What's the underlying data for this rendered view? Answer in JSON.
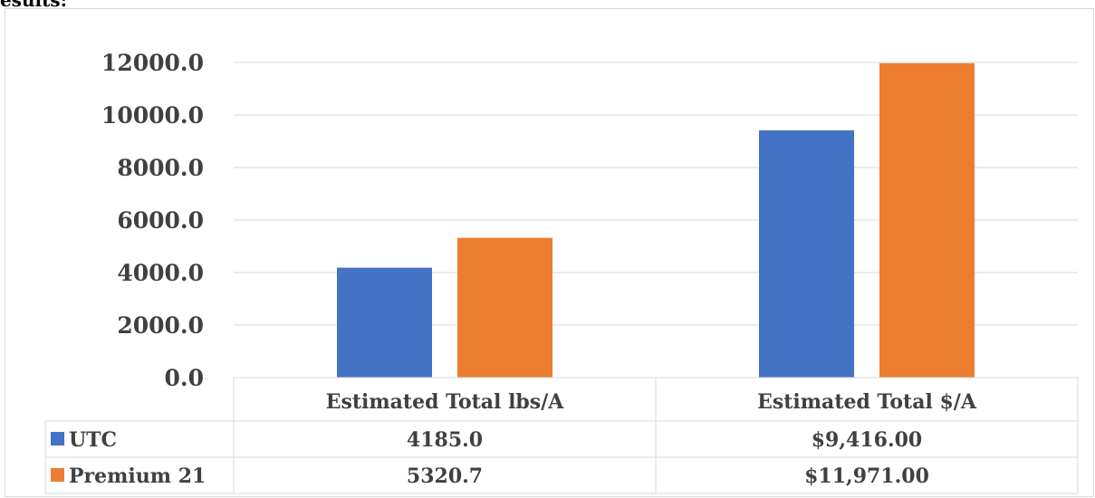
{
  "page": {
    "heading_fragment": "esults:"
  },
  "chart_data": {
    "type": "bar",
    "categories": [
      "Estimated Total lbs/A",
      "Estimated Total $/A"
    ],
    "series": [
      {
        "name": "UTC",
        "values": [
          4185.0,
          9416.0
        ],
        "value_labels": [
          "4185.0",
          "$9,416.00"
        ],
        "color": "#4472c4"
      },
      {
        "name": "Premium 21",
        "values": [
          5320.7,
          11971.0
        ],
        "value_labels": [
          "5320.7",
          "$11,971.00"
        ],
        "color": "#ed7d31"
      }
    ],
    "y_ticks": [
      "0.0",
      "2000.0",
      "4000.0",
      "6000.0",
      "8000.0",
      "10000.0",
      "12000.0"
    ],
    "ylim": [
      0,
      12000
    ],
    "grid": true,
    "legend": "data-table",
    "gridline_color": "#d9d9d9",
    "text_color": "#404040"
  }
}
